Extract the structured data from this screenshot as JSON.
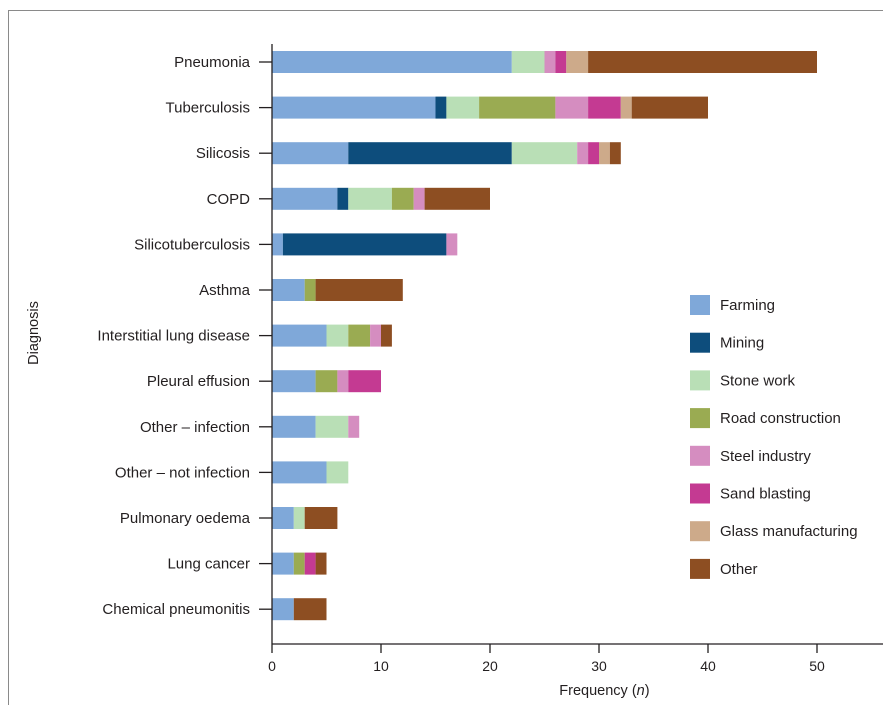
{
  "chart_data": {
    "type": "bar",
    "orientation": "horizontal",
    "stacked": true,
    "xlabel": "Frequency (n)",
    "ylabel": "Diagnosis",
    "xlim": [
      0,
      55
    ],
    "xticks": [
      0,
      10,
      20,
      30,
      40,
      50
    ],
    "grid": false,
    "legend_position": "right",
    "categories": [
      "Pneumonia",
      "Tuberculosis",
      "Silicosis",
      "COPD",
      "Silicotuberculosis",
      "Asthma",
      "Interstitial lung disease",
      "Pleural effusion",
      "Other – infection",
      "Other – not infection",
      "Pulmonary oedema",
      "Lung cancer",
      "Chemical pneumonitis"
    ],
    "series": [
      {
        "name": "Farming",
        "color": "#7fa8d9",
        "values": [
          22,
          15,
          7,
          6,
          1,
          3,
          5,
          4,
          4,
          5,
          2,
          2,
          2
        ]
      },
      {
        "name": "Mining",
        "color": "#0d4d7c",
        "values": [
          0,
          1,
          15,
          1,
          15,
          0,
          0,
          0,
          0,
          0,
          0,
          0,
          0
        ]
      },
      {
        "name": "Stone work",
        "color": "#b9dfb6",
        "values": [
          3,
          3,
          6,
          4,
          0,
          0,
          2,
          0,
          3,
          2,
          1,
          0,
          0
        ]
      },
      {
        "name": "Road construction",
        "color": "#9aab52",
        "values": [
          0,
          7,
          0,
          2,
          0,
          1,
          2,
          2,
          0,
          0,
          0,
          1,
          0
        ]
      },
      {
        "name": "Steel industry",
        "color": "#d58dc0",
        "values": [
          1,
          3,
          1,
          1,
          1,
          0,
          1,
          1,
          1,
          0,
          0,
          0,
          0
        ]
      },
      {
        "name": "Sand blasting",
        "color": "#c43a92",
        "values": [
          1,
          3,
          1,
          0,
          0,
          0,
          0,
          3,
          0,
          0,
          0,
          1,
          0
        ]
      },
      {
        "name": "Glass manufacturing",
        "color": "#cdaa8a",
        "values": [
          2,
          1,
          1,
          0,
          0,
          0,
          0,
          0,
          0,
          0,
          0,
          0,
          0
        ]
      },
      {
        "name": "Other",
        "color": "#8d4e22",
        "values": [
          21,
          7,
          1,
          6,
          0,
          8,
          1,
          0,
          0,
          0,
          3,
          1,
          3
        ]
      }
    ]
  }
}
